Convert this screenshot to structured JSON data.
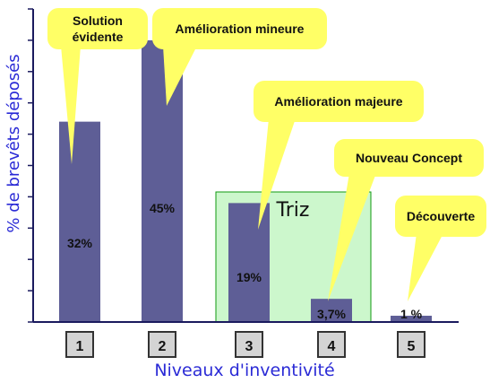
{
  "chart_data": {
    "type": "bar",
    "ylabel": "% de brevêts déposés",
    "xlabel": "Niveaux d'inventivité",
    "categories": [
      "1",
      "2",
      "3",
      "4",
      "5"
    ],
    "values": [
      32,
      45,
      19,
      3.7,
      1
    ],
    "data_labels": [
      "32%",
      "45%",
      "19%",
      "3,7%",
      "1 %"
    ],
    "callouts": [
      "Solution évidente",
      "Amélioration mineure",
      "Amélioration majeure",
      "Nouveau Concept",
      "Découverte"
    ],
    "region_label": "Triz",
    "ylim": [
      0,
      50
    ],
    "grid": false,
    "colors": {
      "bar": "#5e5e96",
      "axis": "#1a1a5e",
      "callout": "#ffff66",
      "triz_box": "#ccf7cc",
      "xlabel": "#2b2bd6",
      "box": "#d4d4d4"
    }
  }
}
